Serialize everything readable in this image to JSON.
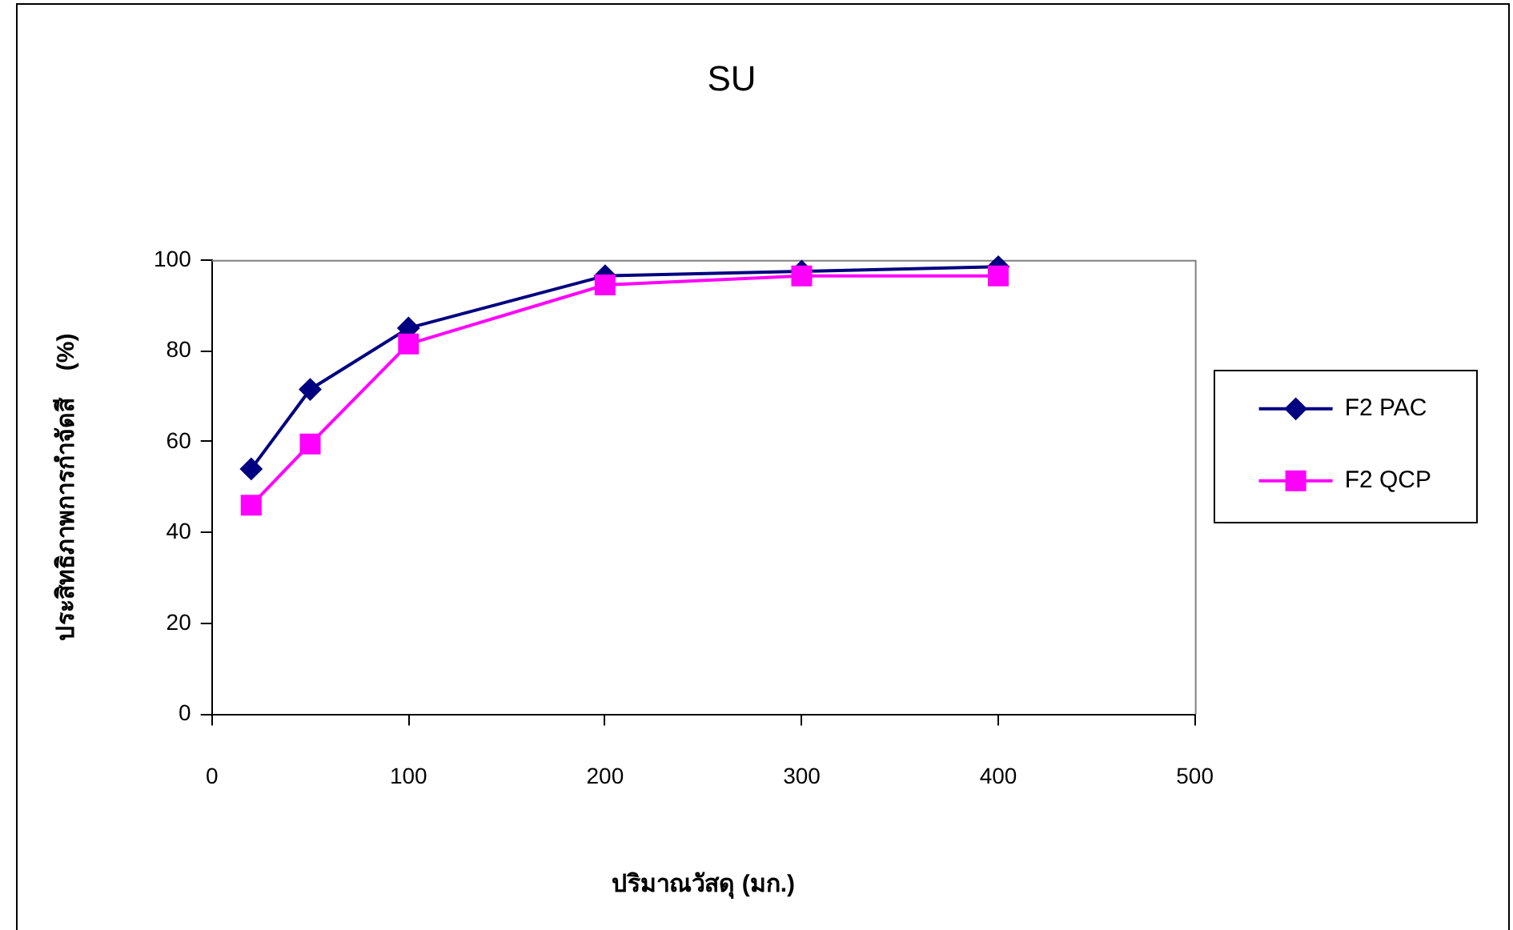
{
  "chart_data": {
    "type": "line",
    "title": "SU",
    "xlabel": "ปริมาณวัสดุ (มก.)",
    "ylabel": "ประสิทธิภาพการกำจัดสี    (%)",
    "x": [
      20,
      50,
      100,
      200,
      300,
      400
    ],
    "series": [
      {
        "name": "F2 PAC",
        "color": "#000080",
        "marker": "diamond",
        "values": [
          54,
          71.5,
          85,
          96.5,
          97.5,
          98.5
        ]
      },
      {
        "name": "F2 QCP",
        "color": "#ff00ff",
        "marker": "square",
        "values": [
          46,
          59.5,
          81.5,
          94.5,
          96.5,
          96.5
        ]
      }
    ],
    "xlim": [
      0,
      500
    ],
    "xticks": [
      0,
      100,
      200,
      300,
      400,
      500
    ],
    "ylim": [
      0,
      100
    ],
    "yticks": [
      0,
      20,
      40,
      60,
      80,
      100
    ],
    "grid": false,
    "legend": "right",
    "line_style": "solid"
  }
}
